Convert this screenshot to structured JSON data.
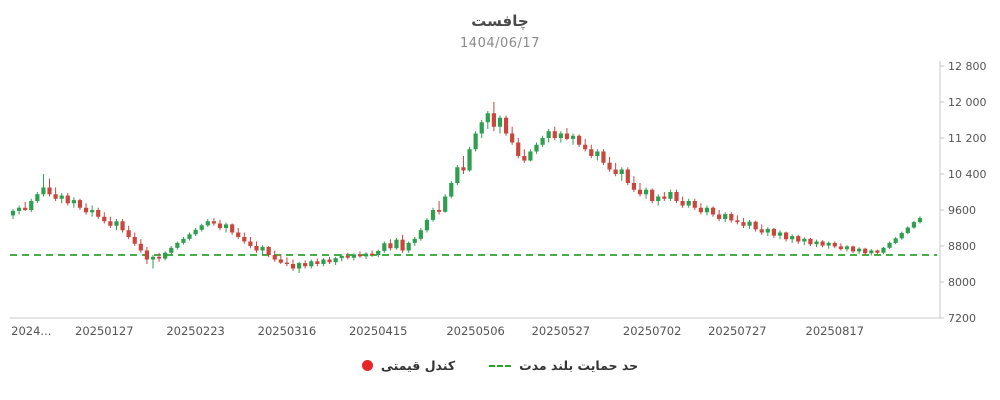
{
  "header": {
    "title": "چافست",
    "subtitle": "1404/06/17"
  },
  "legend": {
    "candle_label": "کندل قیمتی",
    "support_label": "حد حمایت بلند مدت",
    "candle_marker_color": "#e8262a",
    "support_marker_color": "#2aa42a"
  },
  "colors": {
    "up": "#2e9e4f",
    "down": "#c9463d",
    "support": "#2aa42a",
    "axis": "#c8c8c8",
    "tick_text": "#555555"
  },
  "chart_data": {
    "type": "candlestick",
    "title": "چافست",
    "subtitle": "1404/06/17",
    "legend_position": "bottom-center",
    "grid": false,
    "support_level": 8600,
    "y_axis": {
      "min": 7200,
      "max": 12800,
      "ticks": [
        {
          "value": 12800,
          "label": "12 800"
        },
        {
          "value": 12000,
          "label": "12 000"
        },
        {
          "value": 11200,
          "label": "11 200"
        },
        {
          "value": 10400,
          "label": "10 400"
        },
        {
          "value": 9600,
          "label": "9600"
        },
        {
          "value": 8800,
          "label": "8800"
        },
        {
          "value": 8000,
          "label": "8000"
        },
        {
          "value": 7200,
          "label": "7200"
        }
      ]
    },
    "x_axis": {
      "labels": [
        {
          "text": "2024...",
          "index": 3
        },
        {
          "text": "20250127",
          "index": 15
        },
        {
          "text": "20250223",
          "index": 30
        },
        {
          "text": "20250316",
          "index": 45
        },
        {
          "text": "20250415",
          "index": 60
        },
        {
          "text": "20250506",
          "index": 76
        },
        {
          "text": "20250527",
          "index": 90
        },
        {
          "text": "20250702",
          "index": 105
        },
        {
          "text": "20250727",
          "index": 119
        },
        {
          "text": "20250817",
          "index": 135
        }
      ]
    },
    "candles": [
      [
        9480,
        9620,
        9400,
        9580
      ],
      [
        9580,
        9700,
        9500,
        9650
      ],
      [
        9650,
        9780,
        9580,
        9600
      ],
      [
        9600,
        9850,
        9550,
        9800
      ],
      [
        9800,
        10000,
        9750,
        9950
      ],
      [
        9950,
        10400,
        9900,
        10100
      ],
      [
        10100,
        10300,
        9900,
        9950
      ],
      [
        9950,
        10100,
        9800,
        9850
      ],
      [
        9850,
        9980,
        9750,
        9920
      ],
      [
        9920,
        9980,
        9700,
        9750
      ],
      [
        9750,
        9880,
        9650,
        9820
      ],
      [
        9820,
        9850,
        9600,
        9650
      ],
      [
        9650,
        9750,
        9500,
        9550
      ],
      [
        9550,
        9700,
        9450,
        9600
      ],
      [
        9600,
        9650,
        9400,
        9450
      ],
      [
        9450,
        9550,
        9300,
        9350
      ],
      [
        9350,
        9450,
        9200,
        9250
      ],
      [
        9250,
        9400,
        9150,
        9350
      ],
      [
        9350,
        9400,
        9100,
        9150
      ],
      [
        9150,
        9250,
        8950,
        9000
      ],
      [
        9000,
        9100,
        8800,
        8850
      ],
      [
        8850,
        8950,
        8650,
        8700
      ],
      [
        8700,
        8780,
        8400,
        8500
      ],
      [
        8500,
        8600,
        8300,
        8560
      ],
      [
        8560,
        8650,
        8450,
        8520
      ],
      [
        8520,
        8680,
        8480,
        8650
      ],
      [
        8650,
        8800,
        8600,
        8760
      ],
      [
        8760,
        8900,
        8720,
        8870
      ],
      [
        8870,
        9000,
        8830,
        8960
      ],
      [
        8960,
        9100,
        8920,
        9060
      ],
      [
        9060,
        9200,
        9020,
        9160
      ],
      [
        9160,
        9300,
        9120,
        9260
      ],
      [
        9260,
        9400,
        9220,
        9350
      ],
      [
        9350,
        9420,
        9250,
        9300
      ],
      [
        9300,
        9380,
        9150,
        9200
      ],
      [
        9200,
        9320,
        9100,
        9280
      ],
      [
        9280,
        9300,
        9050,
        9100
      ],
      [
        9100,
        9200,
        8950,
        9000
      ],
      [
        9000,
        9100,
        8850,
        8900
      ],
      [
        8900,
        9000,
        8750,
        8800
      ],
      [
        8800,
        8900,
        8650,
        8700
      ],
      [
        8700,
        8820,
        8600,
        8780
      ],
      [
        8780,
        8800,
        8550,
        8600
      ],
      [
        8600,
        8700,
        8450,
        8500
      ],
      [
        8500,
        8620,
        8400,
        8430
      ],
      [
        8430,
        8550,
        8350,
        8400
      ],
      [
        8400,
        8500,
        8250,
        8300
      ],
      [
        8300,
        8450,
        8200,
        8420
      ],
      [
        8420,
        8480,
        8300,
        8350
      ],
      [
        8350,
        8500,
        8300,
        8460
      ],
      [
        8460,
        8520,
        8350,
        8400
      ],
      [
        8400,
        8530,
        8350,
        8500
      ],
      [
        8500,
        8560,
        8400,
        8440
      ],
      [
        8440,
        8560,
        8380,
        8530
      ],
      [
        8530,
        8620,
        8460,
        8580
      ],
      [
        8580,
        8650,
        8500,
        8540
      ],
      [
        8540,
        8640,
        8480,
        8610
      ],
      [
        8610,
        8680,
        8540,
        8570
      ],
      [
        8570,
        8660,
        8510,
        8630
      ],
      [
        8630,
        8700,
        8560,
        8600
      ],
      [
        8600,
        8720,
        8550,
        8690
      ],
      [
        8690,
        8900,
        8650,
        8860
      ],
      [
        8860,
        8950,
        8700,
        8750
      ],
      [
        8750,
        8980,
        8720,
        8940
      ],
      [
        8940,
        9050,
        8650,
        8700
      ],
      [
        8700,
        8900,
        8650,
        8870
      ],
      [
        8870,
        9000,
        8800,
        8960
      ],
      [
        8960,
        9200,
        8920,
        9150
      ],
      [
        9150,
        9420,
        9100,
        9380
      ],
      [
        9380,
        9650,
        9340,
        9600
      ],
      [
        9600,
        9800,
        9500,
        9560
      ],
      [
        9560,
        9950,
        9540,
        9900
      ],
      [
        9900,
        10250,
        9860,
        10200
      ],
      [
        10200,
        10600,
        10150,
        10550
      ],
      [
        10550,
        10800,
        10400,
        10480
      ],
      [
        10480,
        11000,
        10450,
        10950
      ],
      [
        10950,
        11350,
        10900,
        11300
      ],
      [
        11300,
        11600,
        11200,
        11550
      ],
      [
        11550,
        11800,
        11400,
        11750
      ],
      [
        11750,
        12000,
        11350,
        11450
      ],
      [
        11450,
        11700,
        11300,
        11650
      ],
      [
        11650,
        11700,
        11250,
        11300
      ],
      [
        11300,
        11450,
        11050,
        11100
      ],
      [
        11100,
        11200,
        10750,
        10800
      ],
      [
        10800,
        10950,
        10650,
        10700
      ],
      [
        10700,
        10950,
        10680,
        10900
      ],
      [
        10900,
        11100,
        10850,
        11050
      ],
      [
        11050,
        11250,
        11000,
        11200
      ],
      [
        11200,
        11400,
        11100,
        11350
      ],
      [
        11350,
        11450,
        11150,
        11200
      ],
      [
        11200,
        11350,
        11100,
        11300
      ],
      [
        11300,
        11420,
        11150,
        11180
      ],
      [
        11180,
        11300,
        11050,
        11250
      ],
      [
        11250,
        11280,
        11000,
        11050
      ],
      [
        11050,
        11180,
        10900,
        10950
      ],
      [
        10950,
        11050,
        10750,
        10800
      ],
      [
        10800,
        10950,
        10700,
        10900
      ],
      [
        10900,
        10950,
        10600,
        10650
      ],
      [
        10650,
        10780,
        10450,
        10500
      ],
      [
        10500,
        10650,
        10350,
        10400
      ],
      [
        10400,
        10550,
        10250,
        10500
      ],
      [
        10500,
        10550,
        10150,
        10200
      ],
      [
        10200,
        10350,
        10000,
        10050
      ],
      [
        10050,
        10200,
        9900,
        9950
      ],
      [
        9950,
        10100,
        9850,
        10050
      ],
      [
        10050,
        10080,
        9750,
        9800
      ],
      [
        9800,
        9950,
        9700,
        9900
      ],
      [
        9900,
        10000,
        9800,
        9850
      ],
      [
        9850,
        10050,
        9800,
        10000
      ],
      [
        10000,
        10050,
        9750,
        9800
      ],
      [
        9800,
        9900,
        9650,
        9700
      ],
      [
        9700,
        9850,
        9650,
        9800
      ],
      [
        9800,
        9850,
        9600,
        9650
      ],
      [
        9650,
        9750,
        9500,
        9550
      ],
      [
        9550,
        9700,
        9480,
        9650
      ],
      [
        9650,
        9680,
        9450,
        9500
      ],
      [
        9500,
        9600,
        9350,
        9400
      ],
      [
        9400,
        9550,
        9330,
        9510
      ],
      [
        9510,
        9550,
        9320,
        9370
      ],
      [
        9370,
        9480,
        9280,
        9330
      ],
      [
        9330,
        9420,
        9200,
        9250
      ],
      [
        9250,
        9380,
        9180,
        9340
      ],
      [
        9340,
        9360,
        9120,
        9170
      ],
      [
        9170,
        9280,
        9050,
        9100
      ],
      [
        9100,
        9220,
        9020,
        9180
      ],
      [
        9180,
        9200,
        8980,
        9030
      ],
      [
        9030,
        9150,
        8950,
        9100
      ],
      [
        9100,
        9120,
        8900,
        8950
      ],
      [
        8950,
        9060,
        8870,
        9020
      ],
      [
        9020,
        9050,
        8850,
        8900
      ],
      [
        8900,
        8990,
        8820,
        8960
      ],
      [
        8960,
        8980,
        8800,
        8840
      ],
      [
        8840,
        8940,
        8780,
        8900
      ],
      [
        8900,
        8930,
        8770,
        8810
      ],
      [
        8810,
        8900,
        8740,
        8870
      ],
      [
        8870,
        8900,
        8750,
        8790
      ],
      [
        8790,
        8860,
        8700,
        8730
      ],
      [
        8730,
        8820,
        8680,
        8790
      ],
      [
        8790,
        8810,
        8640,
        8680
      ],
      [
        8680,
        8770,
        8620,
        8740
      ],
      [
        8740,
        8760,
        8600,
        8640
      ],
      [
        8640,
        8730,
        8590,
        8700
      ],
      [
        8700,
        8720,
        8610,
        8650
      ],
      [
        8650,
        8780,
        8620,
        8760
      ],
      [
        8760,
        8900,
        8730,
        8870
      ],
      [
        8870,
        9000,
        8840,
        8970
      ],
      [
        8970,
        9120,
        8940,
        9090
      ],
      [
        9090,
        9240,
        9060,
        9210
      ],
      [
        9210,
        9360,
        9180,
        9330
      ],
      [
        9330,
        9460,
        9300,
        9420
      ]
    ]
  }
}
